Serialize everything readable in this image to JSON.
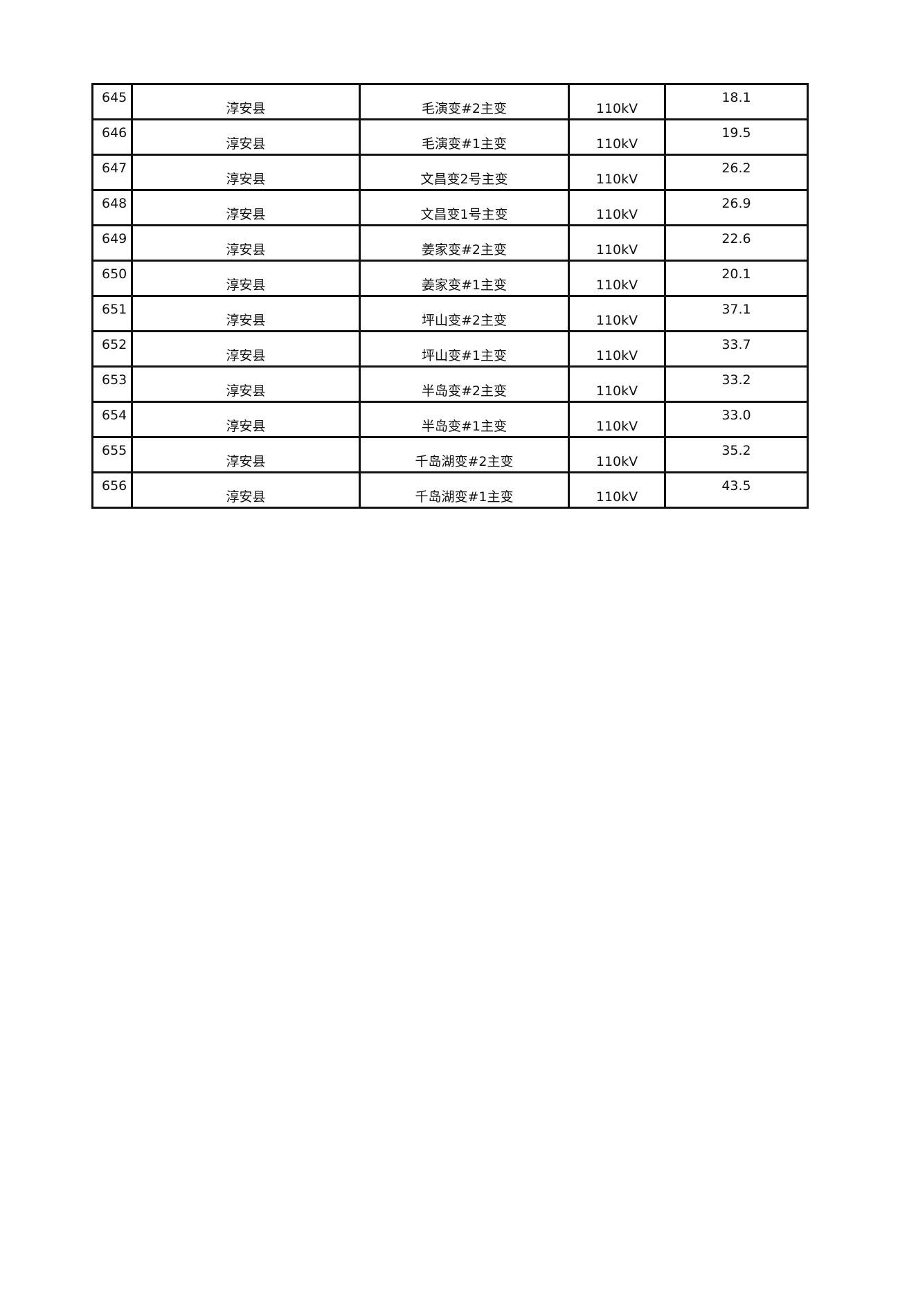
{
  "table": {
    "rows": [
      [
        "645",
        "淳安县",
        "毛演变#2主变",
        "110kV",
        "18.1"
      ],
      [
        "646",
        "淳安县",
        "毛演变#1主变",
        "110kV",
        "19.5"
      ],
      [
        "647",
        "淳安县",
        "文昌变2号主变",
        "110kV",
        "26.2"
      ],
      [
        "648",
        "淳安县",
        "文昌变1号主变",
        "110kV",
        "26.9"
      ],
      [
        "649",
        "淳安县",
        "姜家变#2主变",
        "110kV",
        "22.6"
      ],
      [
        "650",
        "淳安县",
        "姜家变#1主变",
        "110kV",
        "20.1"
      ],
      [
        "651",
        "淳安县",
        "坪山变#2主变",
        "110kV",
        "37.1"
      ],
      [
        "652",
        "淳安县",
        "坪山变#1主变",
        "110kV",
        "33.7"
      ],
      [
        "653",
        "淳安县",
        "半岛变#2主变",
        "110kV",
        "33.2"
      ],
      [
        "654",
        "淳安县",
        "半岛变#1主变",
        "110kV",
        "33.0"
      ],
      [
        "655",
        "淳安县",
        "千岛湖变#2主变",
        "110kV",
        "35.2"
      ],
      [
        "656",
        "淳安县",
        "千岛湖变#1主变",
        "110kV",
        "43.5"
      ]
    ]
  }
}
